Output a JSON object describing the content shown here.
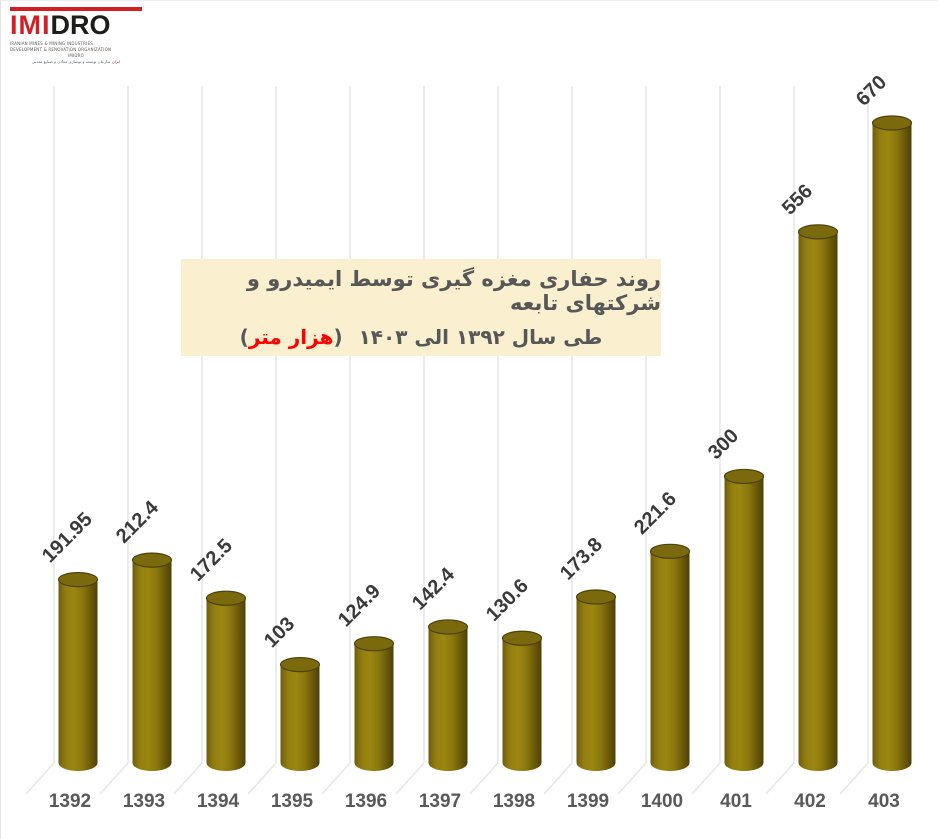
{
  "logo": {
    "red_text": "IMI",
    "dark_text": "DRO",
    "subline1": "IRANIAN MINES & MINING INDUSTRIES",
    "subline2": "DEVELOPMENT & RENOVATION ORGANIZATION",
    "subline3": "IMIDRO",
    "subline_fa": "سازمان توسعه و نوسازی معادن و صنایع معدنی",
    "subline_fa_red": "ایران"
  },
  "title": {
    "line1": "روند حفاری مغزه گیری توسط ایمیدرو و شرکتهای تابعه",
    "range_text": "طی سال ۱۳۹۲ الی ۱۴۰۳",
    "paren_open": "(",
    "unit_text": "هزار متر",
    "paren_close": ")"
  },
  "chart_data": {
    "type": "bar",
    "style": "3d-cylinder",
    "title": "روند حفاری مغزه گیری توسط ایمیدرو و شرکتهای تابعه طی سال ۱۳۹۲ الی ۱۴۰۳ (هزار متر)",
    "categories": [
      "1392",
      "1393",
      "1394",
      "1395",
      "1396",
      "1397",
      "1398",
      "1399",
      "1400",
      "401",
      "402",
      "403"
    ],
    "values": [
      191.95,
      212.4,
      172.5,
      103,
      124.9,
      142.4,
      130.6,
      173.8,
      221.6,
      300,
      556,
      670
    ],
    "xlabel": "",
    "ylabel": "",
    "ylim": [
      0,
      700
    ],
    "grid": "vertical",
    "legend_position": "none",
    "data_label_rotation": -45,
    "colors": {
      "bar_dark_edge": "#4c400a",
      "bar_mid": "#9c870f",
      "bar_light_edge": "#6e5d0d",
      "bar_top_fill": "#7b6a0d",
      "bar_top_stroke": "#4e420a",
      "gridline": "#e7e7e7",
      "value_label": "#3a3a3a",
      "category_label": "#595959",
      "title_text": "#575757",
      "title_accent": "#fe0000",
      "title_bg": "#faf0cf"
    }
  }
}
